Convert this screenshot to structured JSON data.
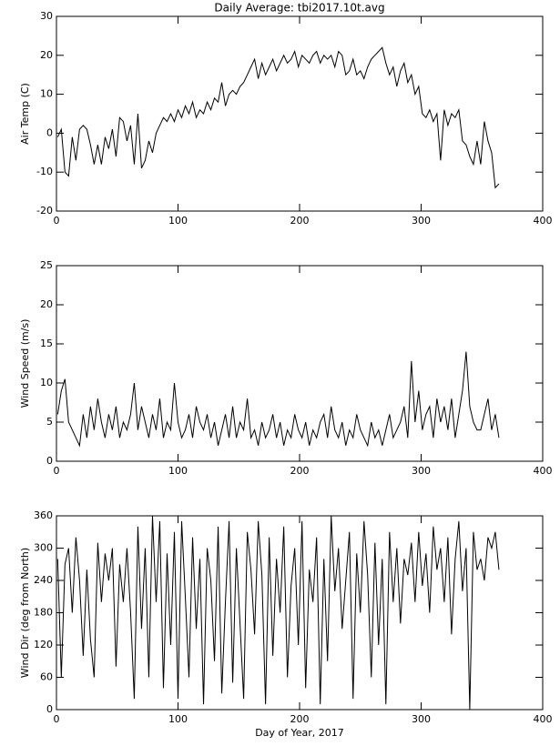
{
  "chart_data": [
    {
      "type": "line",
      "title": "Daily Average: tbi2017.10t.avg",
      "y_label": "Air Temp (C)",
      "color": "#000000",
      "xlim": [
        0,
        400
      ],
      "xticks": [
        0,
        100,
        200,
        300,
        400
      ],
      "ylim": [
        -20,
        30
      ],
      "yticks": [
        -20,
        -10,
        0,
        10,
        20,
        30
      ],
      "x": [
        1,
        4,
        7,
        10,
        13,
        16,
        19,
        22,
        25,
        28,
        31,
        34,
        37,
        40,
        43,
        46,
        49,
        52,
        55,
        58,
        61,
        64,
        67,
        70,
        73,
        76,
        79,
        82,
        85,
        88,
        91,
        94,
        97,
        100,
        103,
        106,
        109,
        112,
        115,
        118,
        121,
        124,
        127,
        130,
        133,
        136,
        139,
        142,
        145,
        148,
        151,
        154,
        157,
        160,
        163,
        166,
        169,
        172,
        175,
        178,
        181,
        184,
        187,
        190,
        193,
        196,
        199,
        202,
        205,
        208,
        211,
        214,
        217,
        220,
        223,
        226,
        229,
        232,
        235,
        238,
        241,
        244,
        247,
        250,
        253,
        256,
        259,
        262,
        265,
        268,
        271,
        274,
        277,
        280,
        283,
        286,
        289,
        292,
        295,
        298,
        301,
        304,
        307,
        310,
        313,
        316,
        319,
        322,
        325,
        328,
        331,
        334,
        337,
        340,
        343,
        346,
        349,
        352,
        355,
        358,
        361,
        364
      ],
      "values": [
        -1,
        1,
        -10,
        -11,
        -1,
        -7,
        1,
        2,
        1,
        -3,
        -8,
        -3,
        -8,
        -1,
        -4,
        1,
        -6,
        4,
        3,
        -2,
        2,
        -8,
        5,
        -9,
        -7,
        -2,
        -5,
        0,
        2,
        4,
        3,
        5,
        3,
        6,
        4,
        7,
        5,
        8,
        4,
        6,
        5,
        8,
        6,
        9,
        8,
        13,
        7,
        10,
        11,
        10,
        12,
        13,
        15,
        17,
        19,
        14,
        18,
        15,
        17,
        19,
        16,
        18,
        20,
        18,
        19,
        21,
        17,
        20,
        19,
        18,
        20,
        21,
        18,
        20,
        19,
        20,
        17,
        21,
        20,
        15,
        16,
        19,
        15,
        16,
        14,
        17,
        19,
        20,
        21,
        22,
        18,
        15,
        17,
        12,
        16,
        18,
        13,
        15,
        10,
        12,
        5,
        4,
        6,
        3,
        5,
        -7,
        6,
        2,
        5,
        4,
        6,
        -2,
        -3,
        -6,
        -8,
        -2,
        -8,
        3,
        -2,
        -5,
        -14,
        -13
      ]
    },
    {
      "type": "line",
      "y_label": "Wind Speed (m/s)",
      "color": "#000000",
      "xlim": [
        0,
        400
      ],
      "xticks": [
        0,
        100,
        200,
        300,
        400
      ],
      "ylim": [
        0,
        25
      ],
      "yticks": [
        0,
        5,
        10,
        15,
        20,
        25
      ],
      "x": [
        1,
        4,
        7,
        10,
        13,
        16,
        19,
        22,
        25,
        28,
        31,
        34,
        37,
        40,
        43,
        46,
        49,
        52,
        55,
        58,
        61,
        64,
        67,
        70,
        73,
        76,
        79,
        82,
        85,
        88,
        91,
        94,
        97,
        100,
        103,
        106,
        109,
        112,
        115,
        118,
        121,
        124,
        127,
        130,
        133,
        136,
        139,
        142,
        145,
        148,
        151,
        154,
        157,
        160,
        163,
        166,
        169,
        172,
        175,
        178,
        181,
        184,
        187,
        190,
        193,
        196,
        199,
        202,
        205,
        208,
        211,
        214,
        217,
        220,
        223,
        226,
        229,
        232,
        235,
        238,
        241,
        244,
        247,
        250,
        253,
        256,
        259,
        262,
        265,
        268,
        271,
        274,
        277,
        280,
        283,
        286,
        289,
        292,
        295,
        298,
        301,
        304,
        307,
        310,
        313,
        316,
        319,
        322,
        325,
        328,
        331,
        334,
        337,
        340,
        343,
        346,
        349,
        352,
        355,
        358,
        361,
        364
      ],
      "values": [
        6,
        9,
        10.5,
        5,
        4,
        3,
        2,
        6,
        3,
        7,
        4,
        8,
        5,
        3,
        6,
        4,
        7,
        3,
        5,
        4,
        6,
        10,
        4,
        7,
        5,
        3,
        6,
        4,
        8,
        3,
        5,
        4,
        10,
        5,
        3,
        4,
        6,
        3,
        7,
        5,
        4,
        6,
        3,
        5,
        2,
        4,
        6,
        3,
        7,
        3,
        5,
        4,
        8,
        3,
        4,
        2,
        5,
        3,
        4,
        6,
        3,
        5,
        2,
        4,
        3,
        6,
        4,
        3,
        5,
        2,
        4,
        3,
        5,
        6,
        3,
        7,
        4,
        3,
        5,
        2,
        4,
        3,
        6,
        4,
        3,
        2,
        5,
        3,
        4,
        2,
        4,
        6,
        3,
        4,
        5,
        7,
        3,
        12.8,
        5,
        9,
        4,
        6,
        7,
        3,
        8,
        5,
        7,
        4,
        8,
        3,
        6,
        9,
        14,
        7,
        5,
        4,
        4,
        6,
        8,
        4,
        6,
        3
      ]
    },
    {
      "type": "line",
      "y_label": "Wind Dir (deg from North)",
      "x_label": "Day of Year, 2017",
      "color": "#000000",
      "xlim": [
        0,
        400
      ],
      "xticks": [
        0,
        100,
        200,
        300,
        400
      ],
      "ylim": [
        0,
        360
      ],
      "yticks": [
        0,
        60,
        120,
        180,
        240,
        300,
        360
      ],
      "x": [
        1,
        4,
        7,
        10,
        13,
        16,
        19,
        22,
        25,
        28,
        31,
        34,
        37,
        40,
        43,
        46,
        49,
        52,
        55,
        58,
        61,
        64,
        67,
        70,
        73,
        76,
        79,
        82,
        85,
        88,
        91,
        94,
        97,
        100,
        103,
        106,
        109,
        112,
        115,
        118,
        121,
        124,
        127,
        130,
        133,
        136,
        139,
        142,
        145,
        148,
        151,
        154,
        157,
        160,
        163,
        166,
        169,
        172,
        175,
        178,
        181,
        184,
        187,
        190,
        193,
        196,
        199,
        202,
        205,
        208,
        211,
        214,
        217,
        220,
        223,
        226,
        229,
        232,
        235,
        238,
        241,
        244,
        247,
        250,
        253,
        256,
        259,
        262,
        265,
        268,
        271,
        274,
        277,
        280,
        283,
        286,
        289,
        292,
        295,
        298,
        301,
        304,
        307,
        310,
        313,
        316,
        319,
        322,
        325,
        328,
        331,
        334,
        337,
        340,
        343,
        346,
        349,
        352,
        355,
        358,
        361,
        364
      ],
      "values": [
        280,
        60,
        270,
        300,
        180,
        320,
        240,
        100,
        260,
        130,
        60,
        310,
        200,
        290,
        240,
        300,
        80,
        270,
        200,
        300,
        180,
        20,
        340,
        150,
        300,
        60,
        360,
        200,
        350,
        40,
        290,
        120,
        330,
        20,
        350,
        210,
        60,
        320,
        150,
        280,
        10,
        300,
        240,
        90,
        340,
        30,
        200,
        350,
        50,
        300,
        160,
        20,
        330,
        260,
        140,
        350,
        250,
        10,
        320,
        100,
        280,
        180,
        340,
        60,
        230,
        300,
        120,
        350,
        40,
        260,
        200,
        320,
        10,
        280,
        90,
        360,
        220,
        300,
        150,
        240,
        330,
        20,
        290,
        180,
        350,
        250,
        60,
        310,
        120,
        280,
        10,
        330,
        200,
        300,
        160,
        280,
        250,
        310,
        200,
        330,
        230,
        290,
        180,
        340,
        260,
        300,
        200,
        320,
        140,
        280,
        350,
        220,
        300,
        0,
        330,
        260,
        280,
        240,
        320,
        300,
        330,
        260
      ]
    }
  ]
}
